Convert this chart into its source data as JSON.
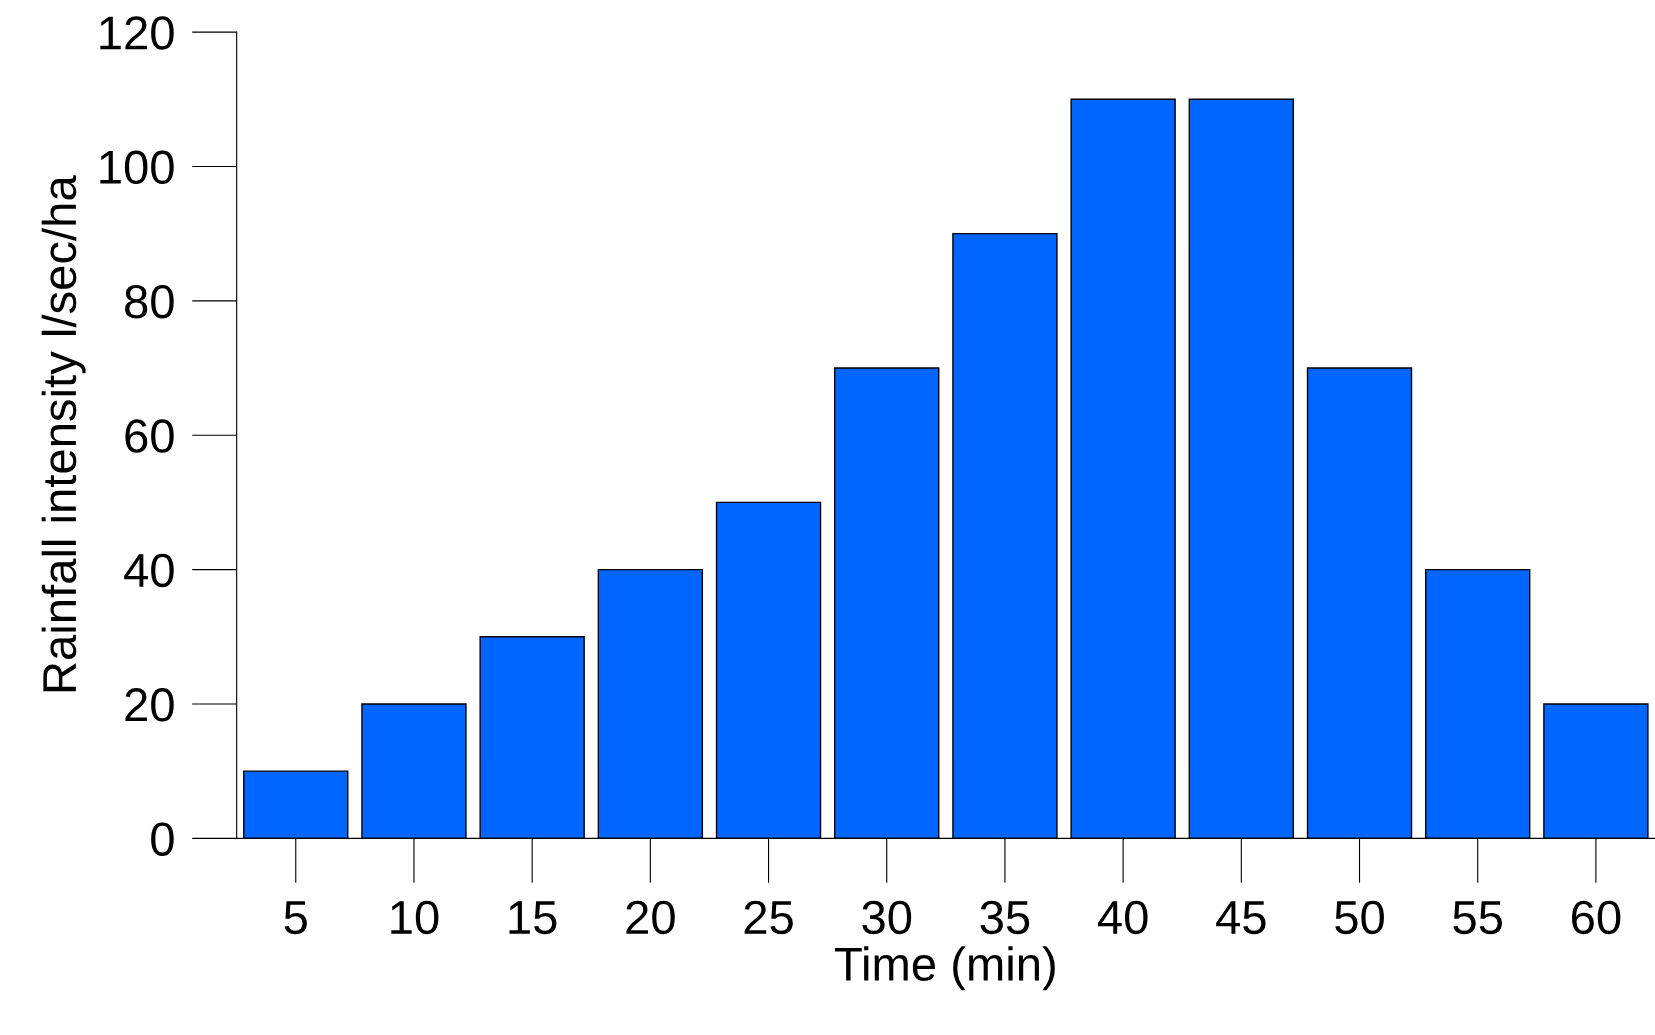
{
  "chart_data": {
    "type": "bar",
    "xlabel": "Time (min)",
    "ylabel": "Rainfall intensity l/sec/ha",
    "categories": [
      "5",
      "10",
      "15",
      "20",
      "25",
      "30",
      "35",
      "40",
      "45",
      "50",
      "55",
      "60"
    ],
    "values": [
      10,
      20,
      30,
      40,
      50,
      70,
      90,
      110,
      110,
      70,
      40,
      20
    ],
    "color": "#0066ff",
    "ylim": [
      0,
      120
    ],
    "yticks": [
      0,
      20,
      40,
      60,
      80,
      100,
      120
    ],
    "grid": false,
    "legend": false
  }
}
